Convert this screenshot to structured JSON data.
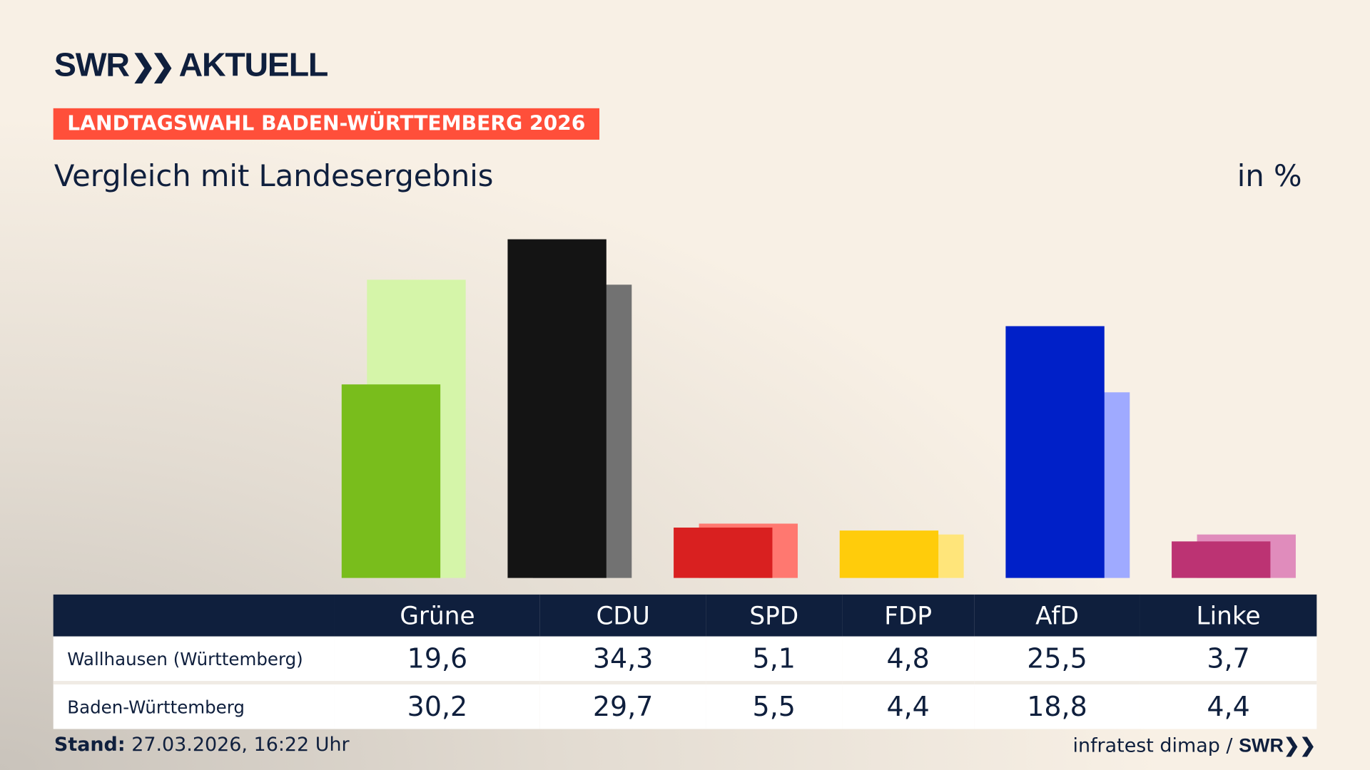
{
  "brand": {
    "logo": "SWR AKTUELL",
    "logo_swr": "SWR",
    "logo_aktuell": "AKTUELL"
  },
  "badge": "LANDTAGSWAHL BADEN-WÜRTTEMBERG 2026",
  "subtitle": "Vergleich mit Landesergebnis",
  "unit": "in %",
  "footer": {
    "stand_label": "Stand:",
    "stand_value": "27.03.2026, 16:22 Uhr",
    "source": "infratest dimap /",
    "source_logo": "SWR"
  },
  "chart_data": {
    "type": "bar",
    "categories": [
      "Grüne",
      "CDU",
      "SPD",
      "FDP",
      "AfD",
      "Linke"
    ],
    "series": [
      {
        "name": "Wallhausen (Württemberg)",
        "values": [
          19.6,
          34.3,
          5.1,
          4.8,
          25.5,
          3.7
        ],
        "labels": [
          "19,6",
          "34,3",
          "5,1",
          "4,8",
          "25,5",
          "3,7"
        ]
      },
      {
        "name": "Baden-Württemberg",
        "values": [
          30.2,
          29.7,
          5.5,
          4.4,
          18.8,
          4.4
        ],
        "labels": [
          "30,2",
          "29,7",
          "5,5",
          "4,4",
          "18,8",
          "4,4"
        ]
      }
    ],
    "colors": {
      "primary": [
        "#79bd1c",
        "#141414",
        "#d92020",
        "#ffcc0b",
        "#0020c8",
        "#bc3373"
      ],
      "secondary": [
        "#d5f5a9",
        "#727272",
        "#ff7870",
        "#ffe57a",
        "#9faaff",
        "#e08cbc"
      ]
    },
    "ylim": [
      0,
      35
    ]
  }
}
